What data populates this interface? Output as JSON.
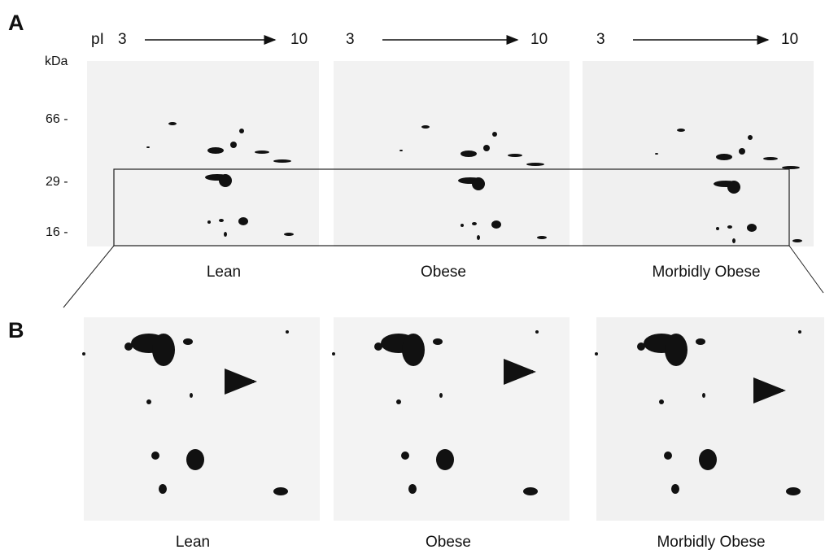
{
  "panel_a": {
    "label": "A",
    "pi_axis": {
      "label": "pI",
      "start": [
        "3",
        "3",
        "3"
      ],
      "end": [
        "10",
        "10",
        "10"
      ]
    },
    "mass_axis": {
      "unit": "kDa",
      "ticks": [
        "66 -",
        "29 -",
        "16 -"
      ]
    },
    "gels": [
      "Lean",
      "Obese",
      "Morbidly Obese"
    ]
  },
  "panel_b": {
    "label": "B",
    "gels": [
      "Lean",
      "Obese",
      "Morbidly Obese"
    ]
  }
}
